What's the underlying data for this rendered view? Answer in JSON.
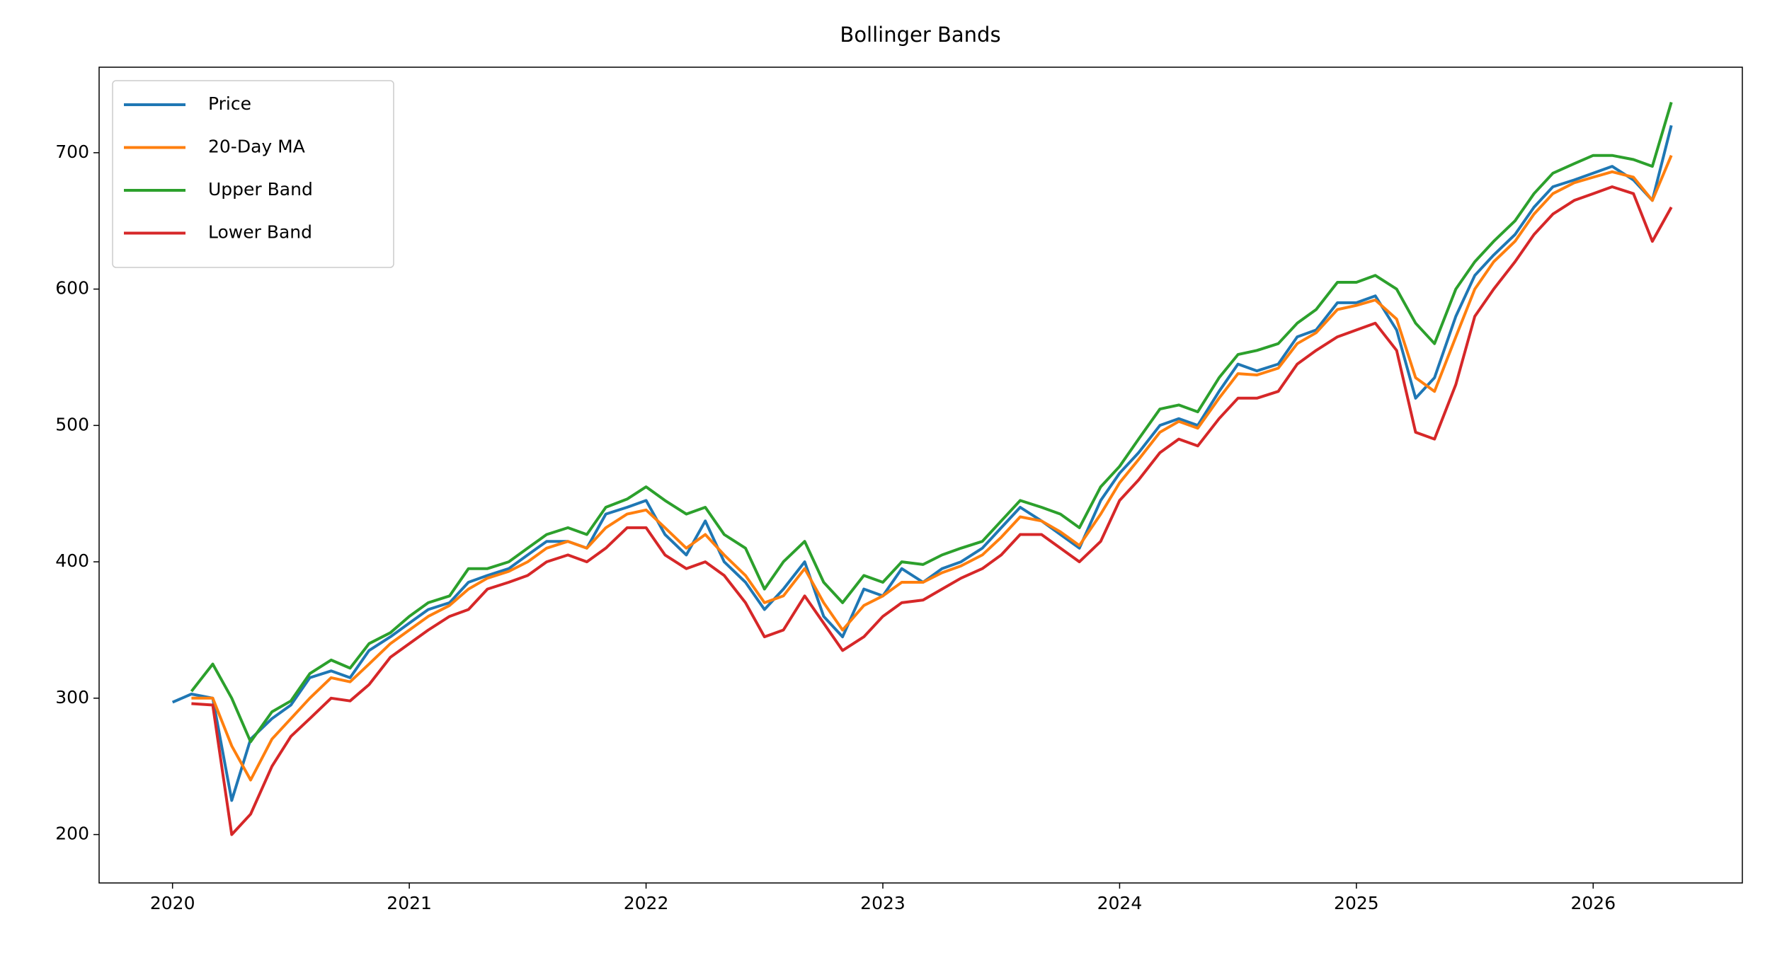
{
  "chart_data": {
    "type": "line",
    "title": "Bollinger Bands",
    "x": [
      2020,
      2020.08,
      2020.17,
      2020.25,
      2020.33,
      2020.42,
      2020.5,
      2020.58,
      2020.67,
      2020.75,
      2020.83,
      2020.92,
      2021,
      2021.08,
      2021.17,
      2021.25,
      2021.33,
      2021.42,
      2021.5,
      2021.58,
      2021.67,
      2021.75,
      2021.83,
      2021.92,
      2022,
      2022.08,
      2022.17,
      2022.25,
      2022.33,
      2022.42,
      2022.5,
      2022.58,
      2022.67,
      2022.75,
      2022.83,
      2022.92,
      2023,
      2023.08,
      2023.17,
      2023.25,
      2023.33,
      2023.42,
      2023.5,
      2023.58,
      2023.67,
      2023.75,
      2023.83,
      2023.92,
      2024,
      2024.08,
      2024.17,
      2024.25,
      2024.33,
      2024.42,
      2024.5,
      2024.58,
      2024.67,
      2024.75,
      2024.83,
      2024.92,
      2025,
      2025.08,
      2025.17,
      2025.25,
      2025.33,
      2025.42,
      2025.5,
      2025.58,
      2025.67,
      2025.75,
      2025.83,
      2025.92,
      2026,
      2026.08,
      2026.17,
      2026.25,
      2026.33
    ],
    "series": [
      {
        "name": "Price",
        "color": "#1f77b4",
        "values": [
          297,
          303,
          300,
          225,
          270,
          285,
          295,
          315,
          320,
          315,
          335,
          345,
          355,
          365,
          370,
          385,
          390,
          395,
          405,
          415,
          415,
          410,
          435,
          440,
          445,
          420,
          405,
          430,
          400,
          385,
          365,
          380,
          400,
          360,
          345,
          380,
          375,
          395,
          385,
          395,
          400,
          410,
          425,
          440,
          430,
          420,
          410,
          445,
          465,
          480,
          500,
          505,
          500,
          525,
          545,
          540,
          545,
          565,
          570,
          590,
          590,
          595,
          570,
          520,
          535,
          580,
          610,
          625,
          640,
          660,
          675,
          680,
          685,
          690,
          680,
          665,
          720
        ]
      },
      {
        "name": "20-Day MA",
        "color": "#ff7f0e",
        "values": [
          null,
          300,
          300,
          265,
          240,
          270,
          285,
          300,
          315,
          312,
          325,
          340,
          350,
          360,
          368,
          380,
          388,
          393,
          400,
          410,
          415,
          410,
          425,
          435,
          438,
          425,
          410,
          420,
          405,
          390,
          370,
          375,
          395,
          370,
          350,
          368,
          375,
          385,
          385,
          392,
          397,
          405,
          418,
          433,
          430,
          422,
          412,
          435,
          458,
          475,
          495,
          503,
          498,
          520,
          538,
          537,
          542,
          560,
          568,
          585,
          588,
          592,
          578,
          535,
          525,
          565,
          600,
          620,
          635,
          655,
          670,
          678,
          682,
          686,
          682,
          665,
          698
        ]
      },
      {
        "name": "Upper Band",
        "color": "#2ca02c",
        "values": [
          null,
          305,
          325,
          300,
          268,
          290,
          298,
          318,
          328,
          322,
          340,
          348,
          360,
          370,
          375,
          395,
          395,
          400,
          410,
          420,
          425,
          420,
          440,
          446,
          455,
          445,
          435,
          440,
          420,
          410,
          380,
          400,
          415,
          385,
          370,
          390,
          385,
          400,
          398,
          405,
          410,
          415,
          430,
          445,
          440,
          435,
          425,
          455,
          470,
          490,
          512,
          515,
          510,
          535,
          552,
          555,
          560,
          575,
          585,
          605,
          605,
          610,
          600,
          575,
          560,
          600,
          620,
          635,
          650,
          670,
          685,
          692,
          698,
          698,
          695,
          690,
          737
        ]
      },
      {
        "name": "Lower Band",
        "color": "#d62728",
        "values": [
          null,
          296,
          295,
          200,
          215,
          250,
          272,
          285,
          300,
          298,
          310,
          330,
          340,
          350,
          360,
          365,
          380,
          385,
          390,
          400,
          405,
          400,
          410,
          425,
          425,
          405,
          395,
          400,
          390,
          370,
          345,
          350,
          375,
          355,
          335,
          345,
          360,
          370,
          372,
          380,
          388,
          395,
          405,
          420,
          420,
          410,
          400,
          415,
          445,
          460,
          480,
          490,
          485,
          505,
          520,
          520,
          525,
          545,
          555,
          565,
          570,
          575,
          555,
          495,
          490,
          530,
          580,
          600,
          620,
          640,
          655,
          665,
          670,
          675,
          670,
          635,
          660
        ]
      }
    ],
    "xlim": [
      2019.69,
      2026.63
    ],
    "xticks": [
      2020,
      2021,
      2022,
      2023,
      2024,
      2025,
      2026
    ],
    "ylim": [
      164.5,
      762.7
    ],
    "yticks": [
      200,
      300,
      400,
      500,
      600,
      700
    ],
    "grid": false,
    "legend": "upper left"
  }
}
